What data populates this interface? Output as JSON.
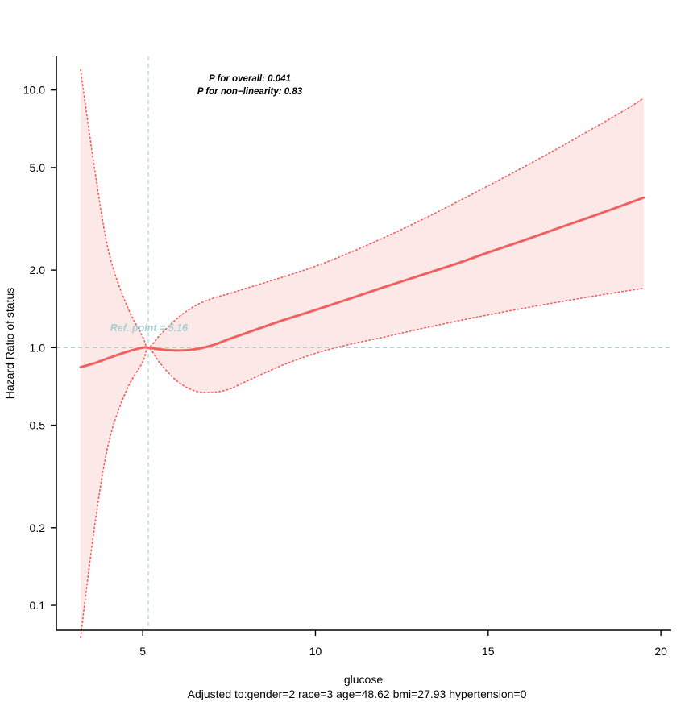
{
  "chart_data": {
    "type": "line",
    "xlabel": "glucose",
    "ylabel": "Hazard Ratio of status",
    "caption": "Adjusted to:gender=2 race=3 age=48.62 bmi=27.93 hypertension=0",
    "annotations": {
      "p_overall": "P for overall: 0.041",
      "p_nonlinear": "P for non−linearity: 0.83",
      "ref_point": "Ref. point = 5.16"
    },
    "ref_x": 5.16,
    "ref_y": 1.0,
    "xlim": [
      2.5,
      20.3
    ],
    "ylim": [
      0.08,
      13.5
    ],
    "y_scale": "log",
    "x_ticks": [
      5,
      10,
      15,
      20
    ],
    "x_tick_labels": [
      "5",
      "10",
      "15",
      "20"
    ],
    "y_ticks": [
      0.1,
      0.2,
      0.5,
      1.0,
      2.0,
      5.0,
      10.0
    ],
    "y_tick_labels": [
      "0.1",
      "0.2",
      "0.5",
      "1.0",
      "2.0",
      "5.0",
      "10.0"
    ],
    "x": [
      3.2,
      3.6,
      4.0,
      4.5,
      5.0,
      5.16,
      5.5,
      6.0,
      6.5,
      7.0,
      7.5,
      8.0,
      9.0,
      10.0,
      11.0,
      12.0,
      13.0,
      14.0,
      15.0,
      16.0,
      17.0,
      18.0,
      19.0,
      19.5
    ],
    "series": [
      {
        "values": [
          0.84,
          0.87,
          0.91,
          0.96,
          1.0,
          1.0,
          0.985,
          0.975,
          0.985,
          1.02,
          1.08,
          1.14,
          1.27,
          1.4,
          1.55,
          1.72,
          1.9,
          2.1,
          2.34,
          2.6,
          2.9,
          3.23,
          3.61,
          3.82
        ]
      },
      {
        "values": [
          12.0,
          5.0,
          2.4,
          1.5,
          1.1,
          1.0,
          1.12,
          1.3,
          1.45,
          1.55,
          1.62,
          1.7,
          1.87,
          2.07,
          2.34,
          2.68,
          3.1,
          3.62,
          4.25,
          5.0,
          5.92,
          7.05,
          8.42,
          9.3
        ]
      },
      {
        "values": [
          0.075,
          0.2,
          0.42,
          0.67,
          0.88,
          1.0,
          0.87,
          0.74,
          0.68,
          0.67,
          0.69,
          0.74,
          0.85,
          0.95,
          1.03,
          1.1,
          1.18,
          1.26,
          1.34,
          1.42,
          1.5,
          1.58,
          1.66,
          1.7
        ]
      }
    ],
    "colors": {
      "line": "#f06060",
      "band": "#fde8e8",
      "ci_dotted": "#f06060",
      "ref_dashed": "#a6d4d2",
      "ref_label": "#a8cfd0",
      "axis": "#000000"
    }
  }
}
